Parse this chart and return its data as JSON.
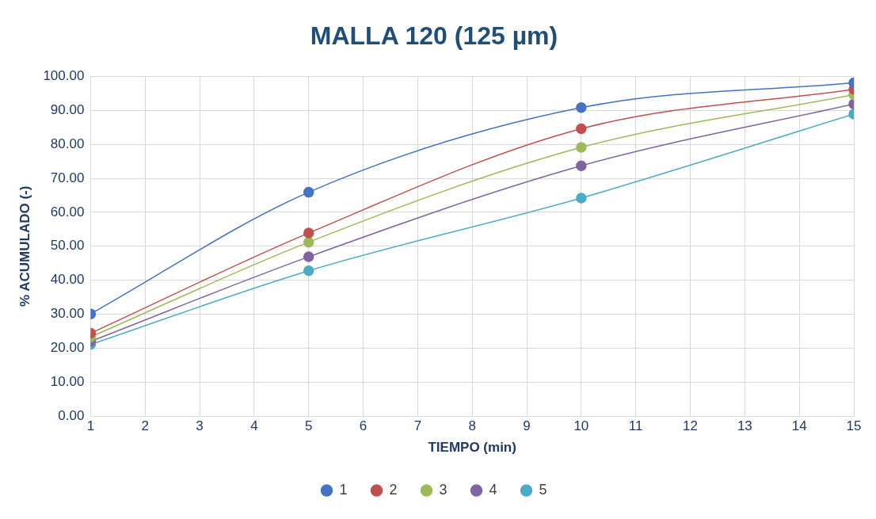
{
  "chart_data": {
    "type": "line",
    "title": "MALLA 120 (125 µm)",
    "xlabel": "TIEMPO (min)",
    "ylabel": "% ACUMULADO (-)",
    "x": [
      1,
      5,
      10,
      15
    ],
    "series": [
      {
        "name": "1",
        "color": "#4472c4",
        "values": [
          30.1,
          65.9,
          90.8,
          98.1
        ]
      },
      {
        "name": "2",
        "color": "#c0504d",
        "values": [
          24.4,
          53.9,
          84.6,
          96.2
        ]
      },
      {
        "name": "3",
        "color": "#9bbb59",
        "values": [
          23.3,
          51.2,
          79.1,
          94.6
        ]
      },
      {
        "name": "4",
        "color": "#8064a2",
        "values": [
          22.0,
          46.9,
          73.7,
          91.9
        ]
      },
      {
        "name": "5",
        "color": "#4bacc6",
        "values": [
          21.1,
          42.8,
          64.2,
          88.9
        ]
      }
    ],
    "xlim": [
      1,
      15
    ],
    "xticks": [
      1,
      2,
      3,
      4,
      5,
      6,
      7,
      8,
      9,
      10,
      11,
      12,
      13,
      14,
      15
    ],
    "ylim": [
      0,
      100
    ],
    "yticks": [
      {
        "value": 0,
        "label": "0.00"
      },
      {
        "value": 10,
        "label": "10.00"
      },
      {
        "value": 20,
        "label": "20.00"
      },
      {
        "value": 30,
        "label": "30.00"
      },
      {
        "value": 40,
        "label": "40.00"
      },
      {
        "value": 50,
        "label": "50.00"
      },
      {
        "value": 60,
        "label": "60.00"
      },
      {
        "value": 70,
        "label": "70.00"
      },
      {
        "value": 80,
        "label": "80.00"
      },
      {
        "value": 90,
        "label": "90.00"
      },
      {
        "value": 100,
        "label": "100.00"
      }
    ],
    "grid": true,
    "legend": "bottom",
    "marker": "circle",
    "line_style": "solid"
  }
}
